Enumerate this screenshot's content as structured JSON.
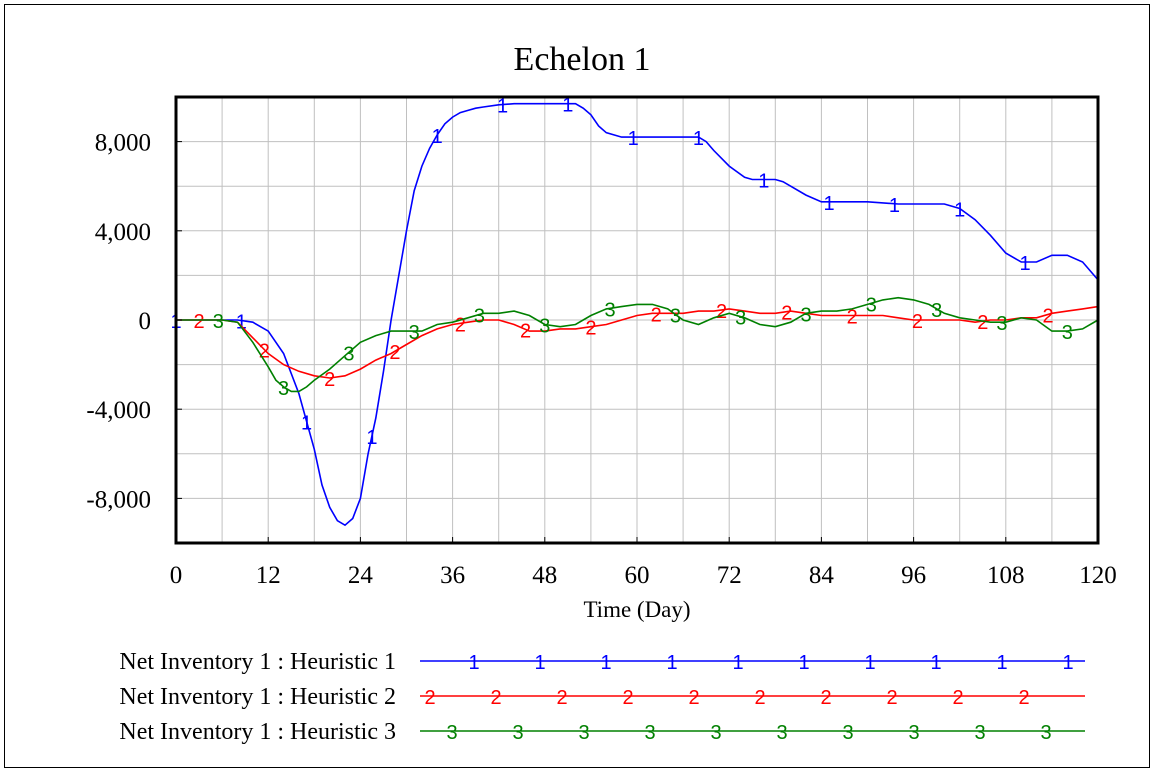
{
  "chart_data": {
    "type": "line",
    "title": "Echelon 1",
    "xlabel": "Time (Day)",
    "ylabel": "",
    "xlim": [
      0,
      120
    ],
    "ylim": [
      -10000,
      10000
    ],
    "x_ticks": [
      0,
      12,
      24,
      36,
      48,
      60,
      72,
      84,
      96,
      108,
      120
    ],
    "x_tick_labels": [
      "0",
      "12",
      "24",
      "36",
      "48",
      "60",
      "72",
      "84",
      "96",
      "108",
      "120"
    ],
    "y_ticks": [
      8000,
      4000,
      0,
      -4000,
      -8000
    ],
    "y_tick_labels": [
      "8,000",
      "4,000",
      "0",
      "-4,000",
      "-8,000"
    ],
    "grid": true,
    "legend_position": "bottom",
    "series": [
      {
        "name": "Net Inventory 1 : Heuristic 1",
        "marker": "1",
        "color": "#0000ff",
        "x": [
          0,
          8,
          10,
          12,
          14,
          16,
          18,
          19,
          20,
          21,
          22,
          23,
          24,
          25,
          26,
          27,
          28,
          29,
          30,
          31,
          32,
          33,
          34,
          35,
          36,
          37,
          38,
          39,
          40,
          42,
          44,
          48,
          52,
          53,
          54,
          55,
          56,
          58,
          60,
          64,
          68,
          69,
          70,
          72,
          74,
          75,
          76,
          78,
          79,
          80,
          82,
          84,
          86,
          90,
          94,
          100,
          102,
          104,
          106,
          108,
          110,
          112,
          114,
          116,
          118,
          120
        ],
        "y": [
          0,
          0,
          -100,
          -500,
          -1500,
          -3300,
          -5800,
          -7400,
          -8400,
          -9000,
          -9200,
          -8900,
          -8000,
          -6000,
          -4400,
          -2300,
          0,
          2000,
          4000,
          5800,
          6900,
          7700,
          8300,
          8800,
          9100,
          9300,
          9400,
          9500,
          9550,
          9650,
          9700,
          9700,
          9700,
          9500,
          9200,
          8700,
          8400,
          8200,
          8200,
          8200,
          8200,
          8000,
          7600,
          6900,
          6400,
          6300,
          6300,
          6300,
          6200,
          6000,
          5600,
          5300,
          5300,
          5300,
          5200,
          5200,
          5000,
          4500,
          3800,
          3000,
          2600,
          2600,
          2900,
          2900,
          2600,
          1800
        ]
      },
      {
        "name": "Net Inventory 1 : Heuristic 2",
        "marker": "2",
        "color": "#ff0000",
        "x": [
          0,
          6,
          8,
          10,
          12,
          14,
          16,
          18,
          20,
          22,
          24,
          26,
          28,
          30,
          32,
          34,
          36,
          38,
          40,
          42,
          44,
          46,
          48,
          50,
          52,
          54,
          56,
          58,
          60,
          62,
          64,
          66,
          68,
          70,
          72,
          74,
          76,
          78,
          80,
          82,
          84,
          86,
          88,
          90,
          92,
          94,
          96,
          98,
          100,
          102,
          104,
          106,
          108,
          110,
          112,
          114,
          116,
          118,
          120
        ],
        "y": [
          0,
          0,
          -100,
          -800,
          -1500,
          -2000,
          -2300,
          -2500,
          -2600,
          -2500,
          -2200,
          -1800,
          -1500,
          -1100,
          -700,
          -400,
          -200,
          -100,
          0,
          0,
          -200,
          -500,
          -500,
          -400,
          -400,
          -300,
          -200,
          0,
          200,
          300,
          300,
          300,
          400,
          400,
          500,
          400,
          300,
          300,
          400,
          300,
          200,
          200,
          200,
          200,
          200,
          100,
          0,
          0,
          0,
          0,
          -100,
          0,
          0,
          100,
          100,
          300,
          400,
          500,
          600
        ]
      },
      {
        "name": "Net Inventory 1 : Heuristic 3",
        "marker": "3",
        "color": "#008000",
        "x": [
          0,
          6,
          8,
          10,
          12,
          13,
          14,
          15,
          16,
          17,
          18,
          20,
          22,
          24,
          26,
          28,
          30,
          32,
          34,
          36,
          38,
          40,
          42,
          44,
          46,
          48,
          50,
          52,
          54,
          56,
          58,
          60,
          62,
          64,
          66,
          68,
          70,
          72,
          74,
          76,
          78,
          80,
          82,
          84,
          86,
          88,
          90,
          92,
          94,
          96,
          98,
          100,
          102,
          104,
          106,
          108,
          110,
          112,
          114,
          116,
          118,
          120
        ],
        "y": [
          0,
          0,
          -100,
          -1000,
          -2100,
          -2700,
          -3000,
          -3200,
          -3200,
          -3000,
          -2700,
          -2200,
          -1600,
          -1000,
          -700,
          -500,
          -500,
          -500,
          -200,
          -100,
          100,
          300,
          300,
          400,
          200,
          -200,
          -300,
          -200,
          200,
          500,
          600,
          700,
          700,
          500,
          0,
          -200,
          100,
          300,
          100,
          -200,
          -300,
          -100,
          300,
          400,
          400,
          500,
          700,
          900,
          1000,
          900,
          700,
          300,
          100,
          0,
          -100,
          -100,
          100,
          0,
          -500,
          -500,
          -400,
          0
        ]
      }
    ]
  }
}
